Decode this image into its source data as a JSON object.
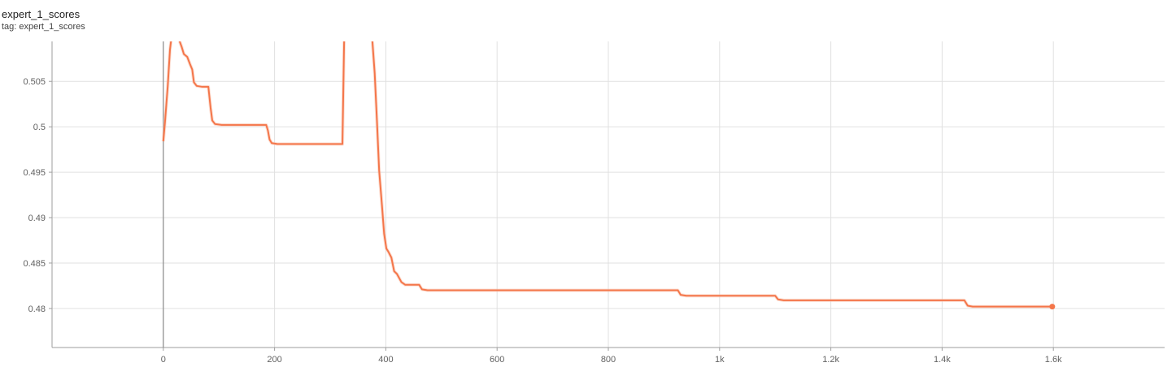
{
  "header": {
    "title": "expert_1_scores",
    "tag_line": "tag: expert_1_scores"
  },
  "chart_data": {
    "type": "line",
    "title": "expert_1_scores",
    "subtitle": "tag: expert_1_scores",
    "xlabel": "",
    "ylabel": "",
    "xlim": [
      -200,
      1800
    ],
    "ylim": [
      0.4757,
      0.5094
    ],
    "x_ticks": [
      0,
      200,
      400,
      600,
      800,
      1000,
      1200,
      1400,
      1600
    ],
    "x_tick_labels": [
      "0",
      "200",
      "400",
      "600",
      "800",
      "1k",
      "1.2k",
      "1.4k",
      "1.6k"
    ],
    "y_ticks": [
      0.48,
      0.485,
      0.49,
      0.495,
      0.5,
      0.505
    ],
    "y_tick_labels": [
      "0.48",
      "0.485",
      "0.49",
      "0.495",
      "0.5",
      "0.505"
    ],
    "grid": true,
    "colors": {
      "series": "#f4764a",
      "series_raw": "#f9c5b0",
      "grid": "#e0e0e0",
      "axis": "#9e9e9e",
      "zero_line": "#8a8a8a"
    },
    "series": [
      {
        "values_xy": [
          [
            0,
            0.4984
          ],
          [
            3,
            0.5005
          ],
          [
            8,
            0.5045
          ],
          [
            12,
            0.5085
          ],
          [
            16,
            0.5105
          ],
          [
            20,
            0.513
          ],
          [
            25,
            0.5105
          ],
          [
            30,
            0.5093
          ],
          [
            33,
            0.5088
          ],
          [
            37,
            0.508
          ],
          [
            43,
            0.5077
          ],
          [
            48,
            0.5069
          ],
          [
            52,
            0.5063
          ],
          [
            55,
            0.5049
          ],
          [
            60,
            0.5045
          ],
          [
            70,
            0.5044
          ],
          [
            81,
            0.5044
          ],
          [
            85,
            0.5021
          ],
          [
            88,
            0.5007
          ],
          [
            93,
            0.5003
          ],
          [
            105,
            0.5002
          ],
          [
            185,
            0.5002
          ],
          [
            188,
            0.4996
          ],
          [
            191,
            0.4986
          ],
          [
            195,
            0.4982
          ],
          [
            205,
            0.4981
          ],
          [
            250,
            0.4981
          ],
          [
            300,
            0.4981
          ],
          [
            322,
            0.4981
          ],
          [
            326,
            0.513
          ],
          [
            370,
            0.513
          ],
          [
            376,
            0.5093
          ],
          [
            380,
            0.5059
          ],
          [
            384,
            0.5007
          ],
          [
            388,
            0.4952
          ],
          [
            393,
            0.4914
          ],
          [
            397,
            0.4882
          ],
          [
            401,
            0.4866
          ],
          [
            405,
            0.4862
          ],
          [
            410,
            0.4856
          ],
          [
            415,
            0.4841
          ],
          [
            420,
            0.4838
          ],
          [
            428,
            0.4829
          ],
          [
            435,
            0.4826
          ],
          [
            445,
            0.4826
          ],
          [
            460,
            0.4826
          ],
          [
            465,
            0.4821
          ],
          [
            475,
            0.482
          ],
          [
            700,
            0.482
          ],
          [
            925,
            0.482
          ],
          [
            930,
            0.4815
          ],
          [
            940,
            0.4814
          ],
          [
            1100,
            0.4814
          ],
          [
            1105,
            0.481
          ],
          [
            1115,
            0.4809
          ],
          [
            1300,
            0.4809
          ],
          [
            1440,
            0.4809
          ],
          [
            1446,
            0.4803
          ],
          [
            1455,
            0.4802
          ],
          [
            1598,
            0.4802
          ]
        ]
      }
    ]
  }
}
